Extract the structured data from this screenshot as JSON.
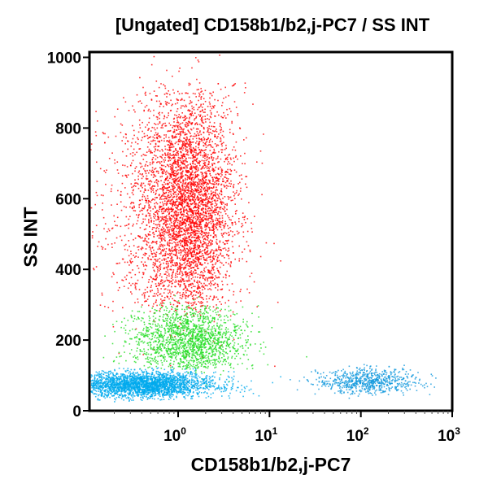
{
  "chart_data": {
    "type": "scatter",
    "title": "[Ungated] CD158b1/b2,j-PC7 / SS INT",
    "xlabel": "CD158b1/b2,j-PC7",
    "ylabel": "SS INT",
    "xscale": "log",
    "xlim": [
      0.107,
      1000
    ],
    "ylim": [
      0,
      1015
    ],
    "x_ticks": [
      {
        "base": "10",
        "exp": "0",
        "value": 1
      },
      {
        "base": "10",
        "exp": "1",
        "value": 10
      },
      {
        "base": "10",
        "exp": "2",
        "value": 100
      },
      {
        "base": "10",
        "exp": "3",
        "value": 1000
      }
    ],
    "y_ticks": [
      "0",
      "200",
      "400",
      "600",
      "800",
      "1000"
    ],
    "y_tick_values": [
      0,
      200,
      400,
      600,
      800,
      1000
    ],
    "grid": false,
    "populations": [
      {
        "color": "#ff0000",
        "x_median": 1.26,
        "x_log_sd": 0.25,
        "y_mean": 580,
        "y_sd": 170,
        "y_range": [
          290,
          930
        ],
        "relative_count": 5000
      },
      {
        "color": "#ff0000",
        "x_median": 0.6,
        "x_log_sd": 0.45,
        "y_mean": 560,
        "y_sd": 200,
        "y_range": [
          280,
          900
        ],
        "relative_count": 1200
      },
      {
        "color": "#22dd22",
        "x_median": 1.3,
        "x_log_sd": 0.3,
        "y_mean": 200,
        "y_sd": 50,
        "y_range": [
          120,
          300
        ],
        "relative_count": 2200
      },
      {
        "color": "#00aaee",
        "x_median": 0.4,
        "x_log_sd": 0.4,
        "y_mean": 75,
        "y_sd": 18,
        "y_range": [
          30,
          125
        ],
        "relative_count": 3500
      },
      {
        "color": "#1199dd",
        "x_median": 120,
        "x_log_sd": 0.28,
        "y_mean": 85,
        "y_sd": 18,
        "y_range": [
          40,
          130
        ],
        "relative_count": 900
      }
    ]
  }
}
